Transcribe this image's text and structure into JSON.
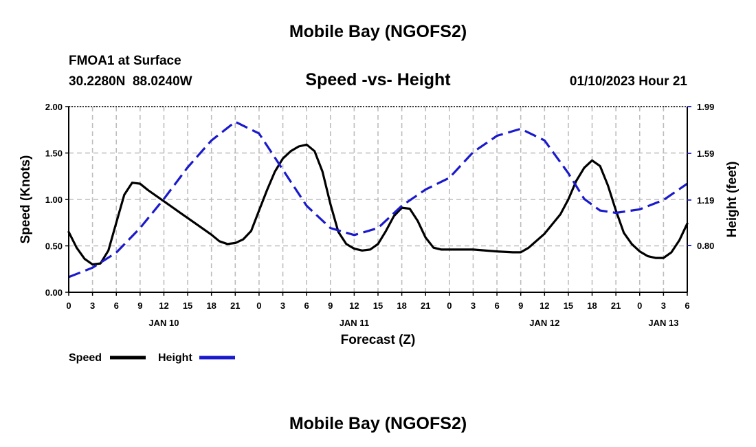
{
  "header": {
    "title": "Mobile Bay (NGOFS2)",
    "station": "FMOA1 at Surface",
    "coords": "30.2280N  88.0240W",
    "datetime": "01/10/2023 Hour 21",
    "footer_title": "Mobile Bay (NGOFS2)"
  },
  "chart_data": {
    "type": "line",
    "title": "Speed -vs- Height",
    "xlabel": "Forecast (Z)",
    "ylabel_left": "Speed (Knots)",
    "ylabel_right": "Height (feet)",
    "x_unit": "hours from 01/10/2023 00Z",
    "xlim": [
      0,
      78
    ],
    "ylim_left": [
      0,
      2
    ],
    "ylim_right": [
      0.4,
      1.99
    ],
    "x_ticks": [
      {
        "x": 0,
        "label": "0"
      },
      {
        "x": 3,
        "label": "3"
      },
      {
        "x": 6,
        "label": "6"
      },
      {
        "x": 9,
        "label": "9"
      },
      {
        "x": 12,
        "label": "12"
      },
      {
        "x": 15,
        "label": "15"
      },
      {
        "x": 18,
        "label": "18"
      },
      {
        "x": 21,
        "label": "21"
      },
      {
        "x": 24,
        "label": "0"
      },
      {
        "x": 27,
        "label": "3"
      },
      {
        "x": 30,
        "label": "6"
      },
      {
        "x": 33,
        "label": "9"
      },
      {
        "x": 36,
        "label": "12"
      },
      {
        "x": 39,
        "label": "15"
      },
      {
        "x": 42,
        "label": "18"
      },
      {
        "x": 45,
        "label": "21"
      },
      {
        "x": 48,
        "label": "0"
      },
      {
        "x": 51,
        "label": "3"
      },
      {
        "x": 54,
        "label": "6"
      },
      {
        "x": 57,
        "label": "9"
      },
      {
        "x": 60,
        "label": "12"
      },
      {
        "x": 63,
        "label": "15"
      },
      {
        "x": 66,
        "label": "18"
      },
      {
        "x": 69,
        "label": "21"
      },
      {
        "x": 72,
        "label": "0"
      },
      {
        "x": 75,
        "label": "3"
      },
      {
        "x": 78,
        "label": "6"
      }
    ],
    "day_labels": [
      {
        "x": 12,
        "label": "JAN 10"
      },
      {
        "x": 36,
        "label": "JAN 11"
      },
      {
        "x": 60,
        "label": "JAN 12"
      },
      {
        "x": 75,
        "label": "JAN 13"
      }
    ],
    "y_ticks_left": [
      {
        "v": 0,
        "label": "0.00"
      },
      {
        "v": 0.5,
        "label": "0.50"
      },
      {
        "v": 1.0,
        "label": "1.00"
      },
      {
        "v": 1.5,
        "label": "1.50"
      },
      {
        "v": 2.0,
        "label": "2.00"
      }
    ],
    "y_ticks_right": [
      {
        "v": 0.8,
        "label": "0.80"
      },
      {
        "v": 1.19,
        "label": "1.19"
      },
      {
        "v": 1.59,
        "label": "1.59"
      },
      {
        "v": 1.99,
        "label": "1.99"
      }
    ],
    "grid": true,
    "legend": "bottom-left",
    "series": [
      {
        "name": "Speed",
        "axis": "left",
        "color": "#000000",
        "style": "solid",
        "points": [
          [
            0,
            0.65
          ],
          [
            1,
            0.48
          ],
          [
            2,
            0.36
          ],
          [
            3,
            0.3
          ],
          [
            4,
            0.31
          ],
          [
            5,
            0.45
          ],
          [
            6,
            0.75
          ],
          [
            7,
            1.05
          ],
          [
            8,
            1.18
          ],
          [
            9,
            1.17
          ],
          [
            10,
            1.1
          ],
          [
            12,
            0.98
          ],
          [
            14,
            0.86
          ],
          [
            16,
            0.74
          ],
          [
            18,
            0.62
          ],
          [
            19,
            0.55
          ],
          [
            20,
            0.52
          ],
          [
            21,
            0.53
          ],
          [
            22,
            0.57
          ],
          [
            23,
            0.66
          ],
          [
            24,
            0.88
          ],
          [
            25,
            1.1
          ],
          [
            26,
            1.3
          ],
          [
            27,
            1.44
          ],
          [
            28,
            1.52
          ],
          [
            29,
            1.57
          ],
          [
            30,
            1.59
          ],
          [
            31,
            1.52
          ],
          [
            32,
            1.3
          ],
          [
            33,
            0.95
          ],
          [
            34,
            0.65
          ],
          [
            35,
            0.52
          ],
          [
            36,
            0.47
          ],
          [
            37,
            0.45
          ],
          [
            38,
            0.46
          ],
          [
            39,
            0.52
          ],
          [
            40,
            0.66
          ],
          [
            41,
            0.82
          ],
          [
            42,
            0.91
          ],
          [
            43,
            0.9
          ],
          [
            44,
            0.77
          ],
          [
            45,
            0.59
          ],
          [
            46,
            0.48
          ],
          [
            47,
            0.46
          ],
          [
            48,
            0.46
          ],
          [
            51,
            0.46
          ],
          [
            54,
            0.44
          ],
          [
            56,
            0.43
          ],
          [
            57,
            0.43
          ],
          [
            58,
            0.48
          ],
          [
            60,
            0.63
          ],
          [
            62,
            0.84
          ],
          [
            63,
            1.0
          ],
          [
            64,
            1.2
          ],
          [
            65,
            1.34
          ],
          [
            66,
            1.42
          ],
          [
            67,
            1.36
          ],
          [
            68,
            1.15
          ],
          [
            69,
            0.88
          ],
          [
            70,
            0.64
          ],
          [
            71,
            0.52
          ],
          [
            72,
            0.44
          ],
          [
            73,
            0.39
          ],
          [
            74,
            0.37
          ],
          [
            75,
            0.37
          ],
          [
            76,
            0.43
          ],
          [
            77,
            0.56
          ],
          [
            78,
            0.74
          ]
        ]
      },
      {
        "name": "Height",
        "axis": "right",
        "color": "#1a1acc",
        "style": "dashed",
        "points": [
          [
            0,
            0.53
          ],
          [
            3,
            0.61
          ],
          [
            6,
            0.74
          ],
          [
            9,
            0.95
          ],
          [
            12,
            1.2
          ],
          [
            15,
            1.47
          ],
          [
            18,
            1.7
          ],
          [
            21,
            1.86
          ],
          [
            24,
            1.76
          ],
          [
            27,
            1.45
          ],
          [
            30,
            1.14
          ],
          [
            33,
            0.95
          ],
          [
            36,
            0.89
          ],
          [
            39,
            0.95
          ],
          [
            42,
            1.14
          ],
          [
            45,
            1.28
          ],
          [
            48,
            1.38
          ],
          [
            51,
            1.6
          ],
          [
            54,
            1.74
          ],
          [
            57,
            1.8
          ],
          [
            60,
            1.7
          ],
          [
            63,
            1.42
          ],
          [
            65,
            1.2
          ],
          [
            67,
            1.1
          ],
          [
            69,
            1.08
          ],
          [
            72,
            1.11
          ],
          [
            75,
            1.19
          ],
          [
            78,
            1.33
          ]
        ]
      }
    ]
  }
}
